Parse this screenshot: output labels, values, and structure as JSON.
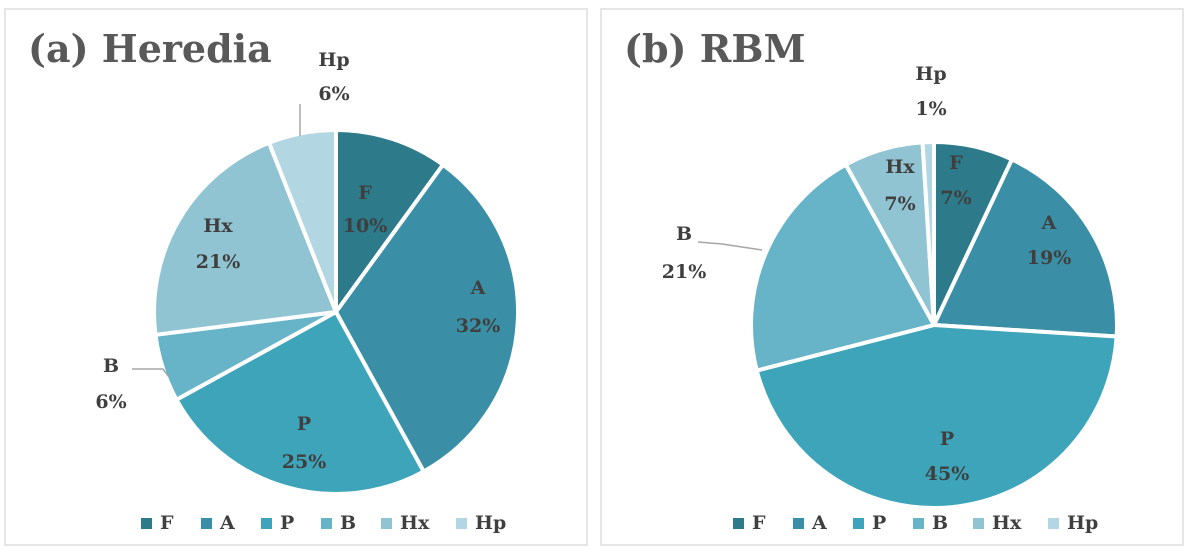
{
  "chart_data": [
    {
      "type": "pie",
      "title": "(a) Heredia",
      "categories": [
        "F",
        "A",
        "P",
        "B",
        "Hx",
        "Hp"
      ],
      "values": [
        10,
        32,
        25,
        6,
        21,
        6
      ],
      "data_labels": [
        "10%",
        "32%",
        "25%",
        "6%",
        "21%",
        "6%"
      ],
      "legend": {
        "entries": [
          "F",
          "A",
          "P",
          "B",
          "Hx",
          "Hp"
        ],
        "position": "bottom"
      }
    },
    {
      "type": "pie",
      "title": "(b) RBM",
      "categories": [
        "F",
        "A",
        "P",
        "B",
        "Hx",
        "Hp"
      ],
      "values": [
        7,
        19,
        45,
        21,
        7,
        1
      ],
      "data_labels": [
        "7%",
        "19%",
        "45%",
        "21%",
        "7%",
        "1%"
      ],
      "legend": {
        "entries": [
          "F",
          "A",
          "P",
          "B",
          "Hx",
          "Hp"
        ],
        "position": "bottom"
      }
    }
  ],
  "colors": {
    "F": "#2c7a8a",
    "A": "#3a8fa6",
    "P": "#3da4ba",
    "B": "#67b3c7",
    "Hx": "#91c4d3",
    "Hp": "#b2d7e2",
    "label_text": "#3f3f3f",
    "title_text": "#595959",
    "leader_line": "#a6a6a6"
  }
}
